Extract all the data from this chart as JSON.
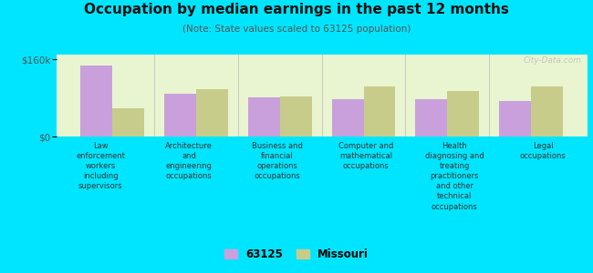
{
  "title": "Occupation by median earnings in the past 12 months",
  "subtitle": "(Note: State values scaled to 63125 population)",
  "categories": [
    "Law\nenforcement\nworkers\nincluding\nsupervisors",
    "Architecture\nand\nengineering\noccupations",
    "Business and\nfinancial\noperations\noccupations",
    "Computer and\nmathematical\noccupations",
    "Health\ndiagnosing and\ntreating\npractitioners\nand other\ntechnical\noccupations",
    "Legal\noccupations"
  ],
  "values_63125": [
    148000,
    88000,
    82000,
    78000,
    78000,
    74000
  ],
  "values_missouri": [
    58000,
    98000,
    84000,
    104000,
    95000,
    104000
  ],
  "color_63125": "#c9a0dc",
  "color_missouri": "#c8cc8a",
  "ylim": [
    0,
    170000
  ],
  "yticks": [
    0,
    160000
  ],
  "ytick_labels": [
    "$0",
    "$160k"
  ],
  "background_color": "#e8f5d0",
  "outer_background": "#00e5ff",
  "bar_width": 0.38,
  "watermark": "City-Data.com",
  "legend_label_63125": "63125",
  "legend_label_missouri": "Missouri"
}
